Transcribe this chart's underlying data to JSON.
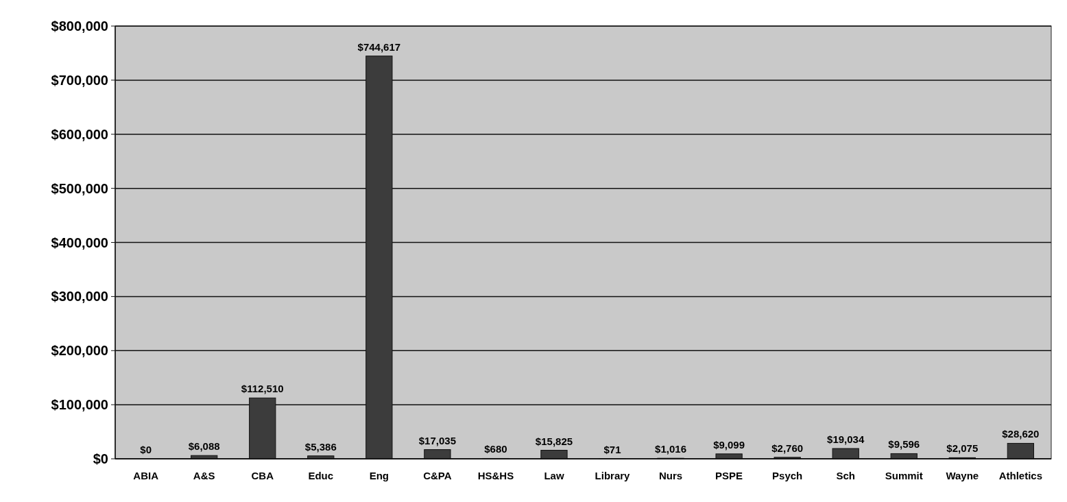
{
  "chart_data": {
    "type": "bar",
    "categories": [
      "ABIA",
      "A&S",
      "CBA",
      "Educ",
      "Eng",
      "C&PA",
      "HS&HS",
      "Law",
      "Library",
      "Nurs",
      "PSPE",
      "Psych",
      "Sch",
      "Summit",
      "Wayne",
      "Athletics"
    ],
    "values": [
      0,
      6088,
      112510,
      5386,
      744617,
      17035,
      680,
      15825,
      71,
      1016,
      9099,
      2760,
      19034,
      9596,
      2075,
      28620
    ],
    "color": "#3c3c3c",
    "value_labels": [
      "$0",
      "$6,088",
      "$112,510",
      "$5,386",
      "$744,617",
      "$17,035",
      "$680",
      "$15,825",
      "$71",
      "$1,016",
      "$9,099",
      "$2,760",
      "$19,034",
      "$9,596",
      "$2,075",
      "$28,620"
    ],
    "ylim": [
      0,
      800000
    ],
    "yticks": [
      {
        "value": 0,
        "label": "$0"
      },
      {
        "value": 100000,
        "label": "$100,000"
      },
      {
        "value": 200000,
        "label": "$200,000"
      },
      {
        "value": 300000,
        "label": "$300,000"
      },
      {
        "value": 400000,
        "label": "$400,000"
      },
      {
        "value": 500000,
        "label": "$500,000"
      },
      {
        "value": 600000,
        "label": "$600,000"
      },
      {
        "value": 700000,
        "label": "$700,000"
      },
      {
        "value": 800000,
        "label": "$800,000"
      }
    ],
    "grid": "y"
  }
}
